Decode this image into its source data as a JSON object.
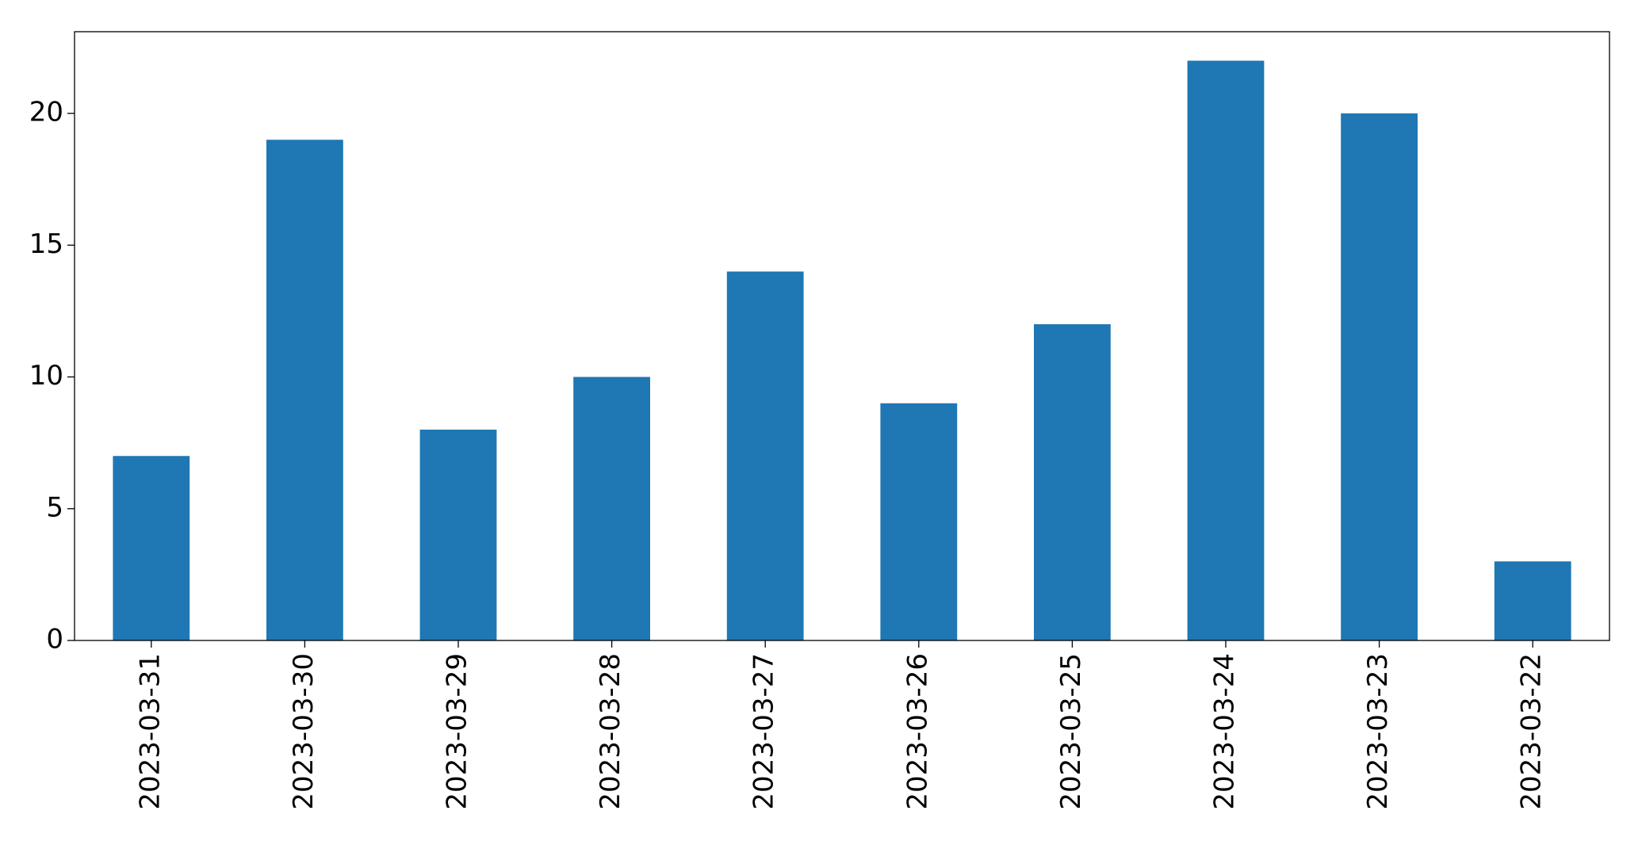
{
  "chart_data": {
    "type": "bar",
    "categories": [
      "2023-03-31",
      "2023-03-30",
      "2023-03-29",
      "2023-03-28",
      "2023-03-27",
      "2023-03-26",
      "2023-03-25",
      "2023-03-24",
      "2023-03-23",
      "2023-03-22"
    ],
    "values": [
      7,
      19,
      8,
      10,
      14,
      9,
      12,
      22,
      20,
      3
    ],
    "color": "#1f77b4",
    "ylim": [
      0,
      23.1
    ],
    "yticks": [
      0,
      5,
      10,
      15,
      20
    ],
    "grid": false
  }
}
